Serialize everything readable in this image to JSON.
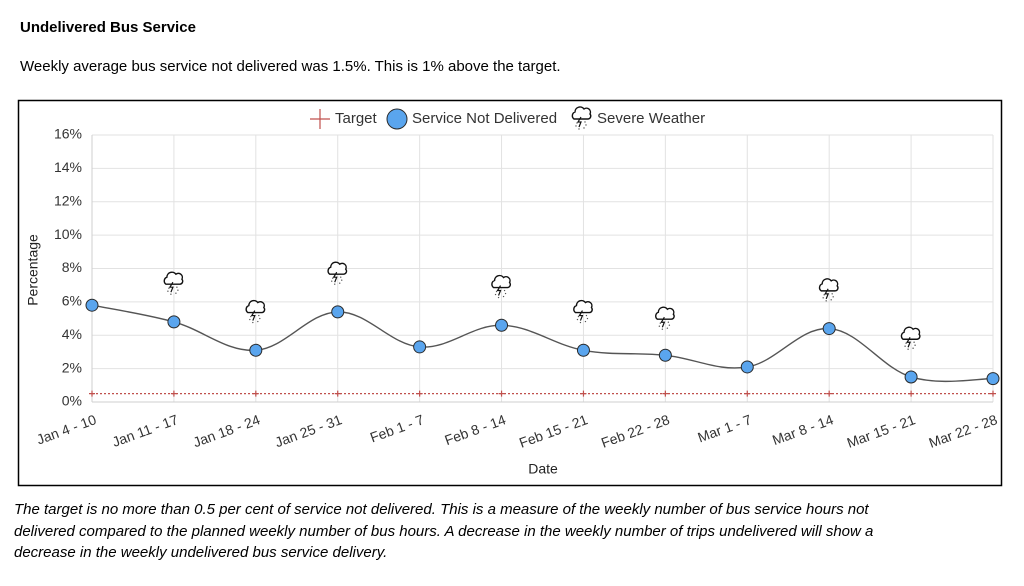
{
  "header": {
    "title": "Undelivered Bus Service",
    "subtitle": "Weekly average bus service not delivered was 1.5%. This is 1% above the target."
  },
  "chart_data": {
    "type": "line",
    "x_label": "Date",
    "y_label": "Percentage",
    "categories": [
      "Jan 4 - 10",
      "Jan 11 - 17",
      "Jan 18 - 24",
      "Jan 25 - 31",
      "Feb 1 - 7",
      "Feb 8 - 14",
      "Feb 15 - 21",
      "Feb 22 - 28",
      "Mar 1 - 7",
      "Mar 8 - 14",
      "Mar 15 - 21",
      "Mar 22 - 28"
    ],
    "series": [
      {
        "name": "Target",
        "color": "#c0504d",
        "marker": "plus",
        "values": [
          0.5,
          0.5,
          0.5,
          0.5,
          0.5,
          0.5,
          0.5,
          0.5,
          0.5,
          0.5,
          0.5,
          0.5
        ]
      },
      {
        "name": "Service Not Delivered",
        "color": "#5aa5ee",
        "marker": "circle",
        "values": [
          5.8,
          4.8,
          3.1,
          5.4,
          3.3,
          4.6,
          3.1,
          2.8,
          2.1,
          4.4,
          1.5,
          1.4
        ]
      },
      {
        "name": "Severe Weather",
        "color": "#222222",
        "marker": "weather",
        "values": [
          null,
          7.0,
          5.3,
          7.6,
          null,
          6.8,
          5.3,
          4.9,
          null,
          6.6,
          3.7,
          null
        ]
      }
    ],
    "ylim": [
      0,
      16
    ],
    "yticks": [
      {
        "value": 0,
        "label": "0%"
      },
      {
        "value": 2,
        "label": "2%"
      },
      {
        "value": 4,
        "label": "4%"
      },
      {
        "value": 6,
        "label": "6%"
      },
      {
        "value": 8,
        "label": "8%"
      },
      {
        "value": 10,
        "label": "10%"
      },
      {
        "value": 12,
        "label": "12%"
      },
      {
        "value": 14,
        "label": "14%"
      },
      {
        "value": 16,
        "label": "16%"
      }
    ],
    "grid": true,
    "legend": "top"
  },
  "footnote": [
    "The target is no more than 0.5 per cent of service not delivered. This is a measure of the weekly number of bus service hours not",
    "delivered compared to the planned weekly number of bus hours. A decrease in the weekly number of trips undelivered will show a",
    "decrease in the weekly undelivered bus service delivery."
  ]
}
